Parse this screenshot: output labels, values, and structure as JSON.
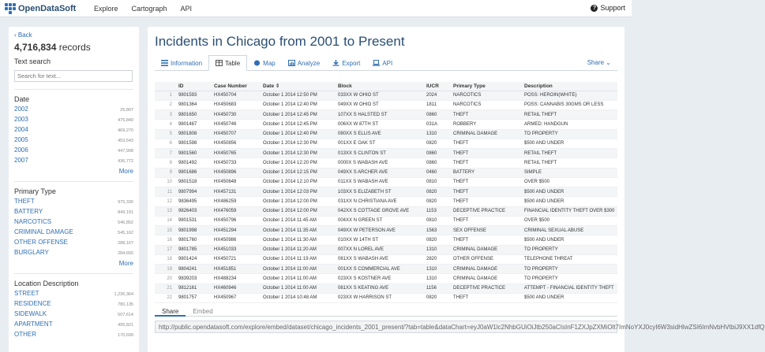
{
  "topbar": {
    "brand": "OpenDataSoft",
    "nav": [
      "Explore",
      "Cartograph",
      "API"
    ],
    "support": "Support"
  },
  "sidebar": {
    "back": "Back",
    "records_count": "4,716,834",
    "records_suffix": "records",
    "text_search_title": "Text search",
    "search_placeholder": "Search for text...",
    "date": {
      "title": "Date",
      "items": [
        {
          "label": "2002",
          "count": "25,807"
        },
        {
          "label": "2003",
          "count": "475,849"
        },
        {
          "label": "2004",
          "count": "469,270"
        },
        {
          "label": "2005",
          "count": "453,543"
        },
        {
          "label": "2006",
          "count": "447,908"
        },
        {
          "label": "2007",
          "count": "436,772"
        }
      ],
      "more": "More"
    },
    "primary_type": {
      "title": "Primary Type",
      "items": [
        {
          "label": "THEFT",
          "count": "975,330"
        },
        {
          "label": "BATTERY",
          "count": "849,191"
        },
        {
          "label": "NARCOTICS",
          "count": "546,852"
        },
        {
          "label": "CRIMINAL DAMAGE",
          "count": "545,162"
        },
        {
          "label": "OTHER OFFENSE",
          "count": "288,167"
        },
        {
          "label": "BURGLARY",
          "count": "284,655"
        }
      ],
      "more": "More"
    },
    "location": {
      "title": "Location Description",
      "items": [
        {
          "label": "STREET",
          "count": "1,236,364"
        },
        {
          "label": "RESIDENCE",
          "count": "780,135"
        },
        {
          "label": "SIDEWALK",
          "count": "507,614"
        },
        {
          "label": "APARTMENT",
          "count": "495,821"
        },
        {
          "label": "OTHER",
          "count": "170,699"
        }
      ]
    }
  },
  "main": {
    "title": "Incidents in Chicago from 2001 to Present",
    "tabs": [
      "Information",
      "Table",
      "Map",
      "Analyze",
      "Export",
      "API"
    ],
    "share": "Share",
    "columns": [
      "",
      "ID",
      "Case Number",
      "Date",
      "Block",
      "IUCR",
      "Primary Type",
      "Description"
    ],
    "rows": [
      [
        "1",
        "9801593",
        "HX450704",
        "October 1 2014 12:50 PM",
        "033XX W OHIO ST",
        "2024",
        "NARCOTICS",
        "POSS: HEROIN(WHITE)"
      ],
      [
        "2",
        "9801364",
        "HX450683",
        "October 1 2014 12:40 PM",
        "049XX W OHIO ST",
        "1811",
        "NARCOTICS",
        "POSS: CANNABIS 30GMS OR LESS"
      ],
      [
        "3",
        "9801650",
        "HX450730",
        "October 1 2014 12:45 PM",
        "107XX S HALSTED ST",
        "0860",
        "THEFT",
        "RETAIL THEFT"
      ],
      [
        "4",
        "9801487",
        "HX450746",
        "October 1 2014 12:45 PM",
        "006XX W 87TH ST",
        "031A",
        "ROBBERY",
        "ARMED: HANDGUN"
      ],
      [
        "5",
        "9801808",
        "HX450707",
        "October 1 2014 12:40 PM",
        "080XX S ELLIS AVE",
        "1310",
        "CRIMINAL DAMAGE",
        "TO PROPERTY"
      ],
      [
        "6",
        "9801598",
        "HX450856",
        "October 1 2014 12:30 PM",
        "001XX E OAK ST",
        "0820",
        "THEFT",
        "$500 AND UNDER"
      ],
      [
        "7",
        "9801560",
        "HX450765",
        "October 1 2014 12:30 PM",
        "013XX S CLINTON ST",
        "0860",
        "THEFT",
        "RETAIL THEFT"
      ],
      [
        "8",
        "9801492",
        "HX450733",
        "October 1 2014 12:20 PM",
        "0000X S WABASH AVE",
        "0860",
        "THEFT",
        "RETAIL THEFT"
      ],
      [
        "9",
        "9801686",
        "HX450896",
        "October 1 2014 12:15 PM",
        "049XX S ARCHER AVE",
        "0460",
        "BATTERY",
        "SIMPLE"
      ],
      [
        "10",
        "9801518",
        "HX450648",
        "October 1 2014 12:10 PM",
        "011XX S WABASH AVE",
        "0810",
        "THEFT",
        "OVER $500"
      ],
      [
        "11",
        "9807994",
        "HX457131",
        "October 1 2014 12:03 PM",
        "103XX S ELIZABETH ST",
        "0820",
        "THEFT",
        "$500 AND UNDER"
      ],
      [
        "12",
        "9836495",
        "HX486259",
        "October 1 2014 12:00 PM",
        "031XX N CHRISTIANA AVE",
        "0820",
        "THEFT",
        "$500 AND UNDER"
      ],
      [
        "13",
        "9826403",
        "HX476059",
        "October 1 2014 12:00 PM",
        "042XX S COTTAGE GROVE AVE",
        "1153",
        "DECEPTIVE PRACTICE",
        "FINANCIAL IDENTITY THEFT OVER $300"
      ],
      [
        "14",
        "9801531",
        "HX450796",
        "October 1 2014 11:45 AM",
        "004XX N GREEN ST",
        "0810",
        "THEFT",
        "OVER $500"
      ],
      [
        "15",
        "9801998",
        "HX451294",
        "October 1 2014 11:35 AM",
        "049XX W PETERSON AVE",
        "1563",
        "SEX OFFENSE",
        "CRIMINAL SEXUAL ABUSE"
      ],
      [
        "16",
        "9801760",
        "HX450986",
        "October 1 2014 11:30 AM",
        "010XX W 14TH ST",
        "0820",
        "THEFT",
        "$500 AND UNDER"
      ],
      [
        "17",
        "9801785",
        "HX451033",
        "October 1 2014 11:20 AM",
        "007XX N LOREL AVE",
        "1310",
        "CRIMINAL DAMAGE",
        "TO PROPERTY"
      ],
      [
        "18",
        "9801424",
        "HX450721",
        "October 1 2014 11:19 AM",
        "081XX S WABASH AVE",
        "2820",
        "OTHER OFFENSE",
        "TELEPHONE THREAT"
      ],
      [
        "19",
        "9804241",
        "HX451851",
        "October 1 2014 11:00 AM",
        "001XX S COMMERCIAL AVE",
        "1310",
        "CRIMINAL DAMAGE",
        "TO PROPERTY"
      ],
      [
        "20",
        "9839203",
        "HX488234",
        "October 1 2014 11:00 AM",
        "023XX S KOSTNER AVE",
        "1310",
        "CRIMINAL DAMAGE",
        "TO PROPERTY"
      ],
      [
        "21",
        "9812161",
        "HX460946",
        "October 1 2014 11:00 AM",
        "081XX S KEATING AVE",
        "1156",
        "DECEPTIVE PRACTICE",
        "ATTEMPT - FINANCIAL IDENTITY THEFT"
      ],
      [
        "22",
        "9801757",
        "HX450967",
        "October 1 2014 10:48 AM",
        "023XX W HARRISON ST",
        "0820",
        "THEFT",
        "$500 AND UNDER"
      ]
    ],
    "embed_tabs": [
      "Share",
      "Embed"
    ],
    "url": "http://public.opendatasoft.com/explore/embed/dataset/chicago_incidents_2001_present/?tab=table&dataChart=eyJ0aW1lc2NhbGUiOiJtb250aCIsInF1ZXJpZXMiOlt7ImNoYXJ0cyI6W3sidHlwZSI6ImNvbHVtbiJ9XX1dfQ"
  }
}
